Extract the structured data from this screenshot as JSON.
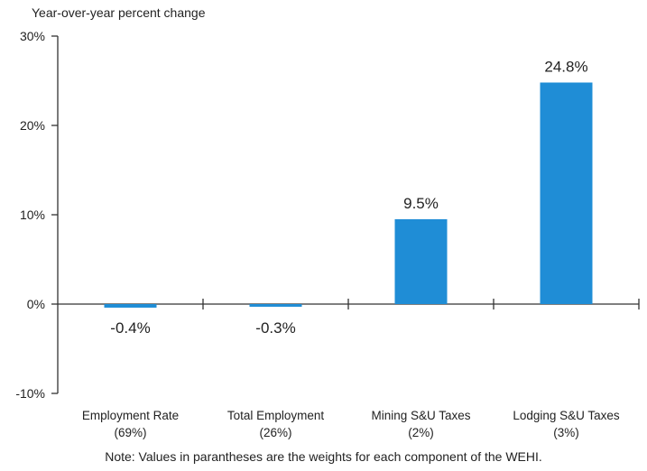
{
  "chart_data": {
    "type": "bar",
    "ylabel": "Year-over-year percent change",
    "categories": [
      [
        "Employment Rate",
        "(69%)"
      ],
      [
        "Total Employment",
        "(26%)"
      ],
      [
        "Mining S&U Taxes",
        "(2%)"
      ],
      [
        "Lodging S&U Taxes",
        "(3%)"
      ]
    ],
    "values": [
      -0.4,
      -0.3,
      9.5,
      24.8
    ],
    "data_labels": [
      "-0.4%",
      "-0.3%",
      "9.5%",
      "24.8%"
    ],
    "ylim": [
      -10,
      30
    ],
    "yticks": [
      -10,
      0,
      10,
      20,
      30
    ],
    "ytick_labels": [
      "-10%",
      "0%",
      "10%",
      "20%",
      "30%"
    ],
    "grid": false,
    "bar_color": "#1f8dd6"
  },
  "note": "Note: Values in parantheses are the weights for each component of the WEHI."
}
